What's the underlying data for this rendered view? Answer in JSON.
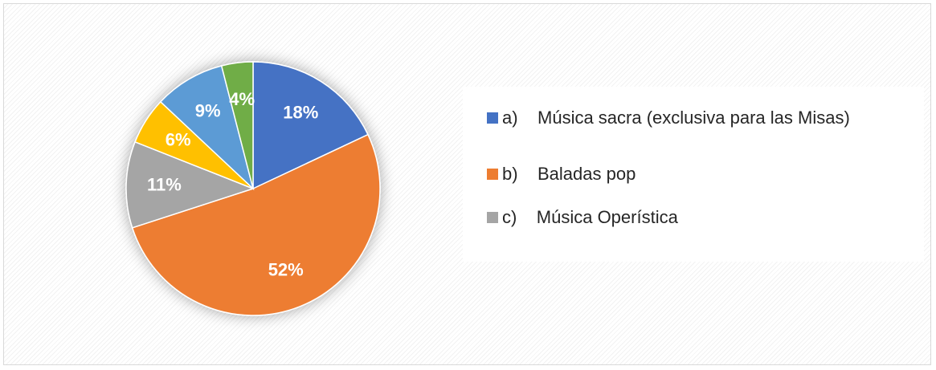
{
  "chart_data": {
    "type": "pie",
    "categories": [
      "a)    Música sacra (exclusiva para las Misas)",
      "b)    Baladas pop",
      "c)    Música Operística",
      null,
      null,
      null
    ],
    "values": [
      18,
      52,
      11,
      6,
      9,
      4
    ],
    "value_labels": [
      "18%",
      "52%",
      "11%",
      "6%",
      "9%",
      "4%"
    ],
    "colors": [
      "#4472c4",
      "#ed7d31",
      "#a5a5a5",
      "#ffc000",
      "#5b9bd5",
      "#70ad47"
    ],
    "legend": "right"
  }
}
